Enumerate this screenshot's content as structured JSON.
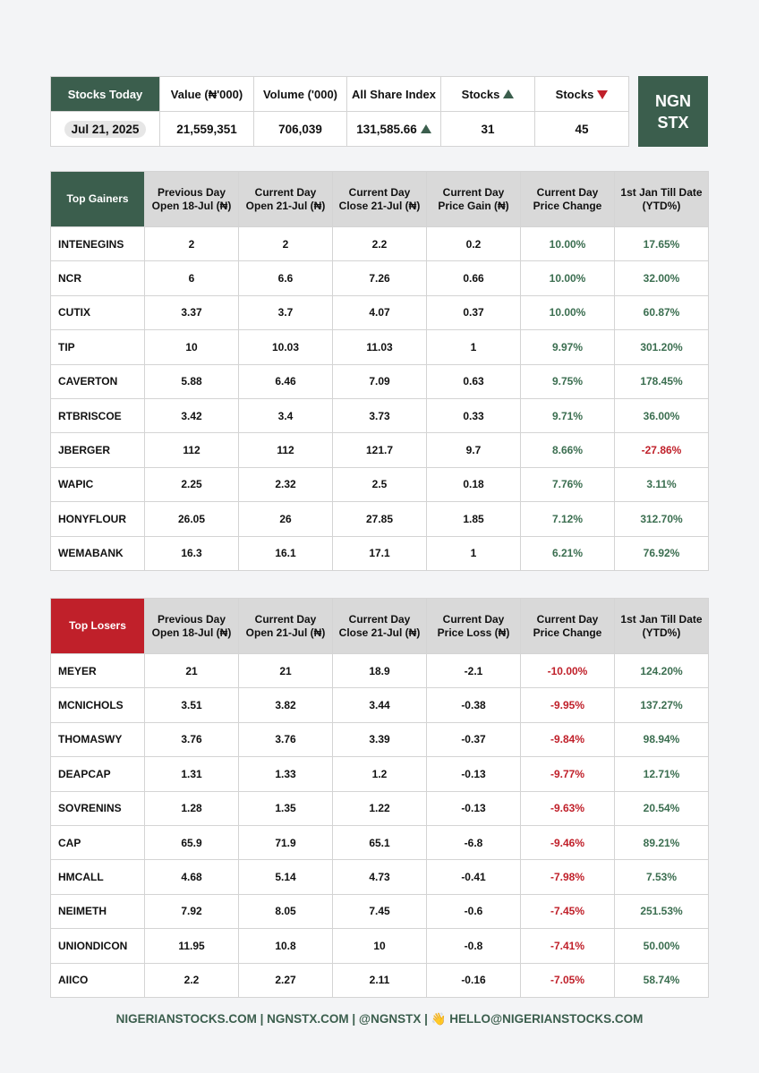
{
  "summary": {
    "headers": [
      "Stocks Today",
      "Value (₦'000)",
      "Volume ('000)",
      "All Share Index",
      "Stocks",
      "Stocks"
    ],
    "values": [
      "Jul 21, 2025",
      "21,559,351",
      "706,039",
      "131,585.66",
      "31",
      "45"
    ]
  },
  "logo": [
    "NGN",
    "STX"
  ],
  "gainers": {
    "headers": [
      "Top Gainers",
      "Previous Day Open 18-Jul (₦)",
      "Current Day Open 21-Jul (₦)",
      "Current Day Close 21-Jul (₦)",
      "Current Day Price Gain (₦)",
      "Current Day Price Change",
      "1st Jan Till Date (YTD%)"
    ],
    "rows": [
      [
        "INTENEGINS",
        "2",
        "2",
        "2.2",
        "0.2",
        "10.00%",
        "17.65%"
      ],
      [
        "NCR",
        "6",
        "6.6",
        "7.26",
        "0.66",
        "10.00%",
        "32.00%"
      ],
      [
        "CUTIX",
        "3.37",
        "3.7",
        "4.07",
        "0.37",
        "10.00%",
        "60.87%"
      ],
      [
        "TIP",
        "10",
        "10.03",
        "11.03",
        "1",
        "9.97%",
        "301.20%"
      ],
      [
        "CAVERTON",
        "5.88",
        "6.46",
        "7.09",
        "0.63",
        "9.75%",
        "178.45%"
      ],
      [
        "RTBRISCOE",
        "3.42",
        "3.4",
        "3.73",
        "0.33",
        "9.71%",
        "36.00%"
      ],
      [
        "JBERGER",
        "112",
        "112",
        "121.7",
        "9.7",
        "8.66%",
        "-27.86%"
      ],
      [
        "WAPIC",
        "2.25",
        "2.32",
        "2.5",
        "0.18",
        "7.76%",
        "3.11%"
      ],
      [
        "HONYFLOUR",
        "26.05",
        "26",
        "27.85",
        "1.85",
        "7.12%",
        "312.70%"
      ],
      [
        "WEMABANK",
        "16.3",
        "16.1",
        "17.1",
        "1",
        "6.21%",
        "76.92%"
      ]
    ]
  },
  "losers": {
    "headers": [
      "Top Losers",
      "Previous Day Open 18-Jul (₦)",
      "Current Day Open 21-Jul (₦)",
      "Current Day Close 21-Jul (₦)",
      "Current Day Price Loss (₦)",
      "Current Day Price Change",
      "1st Jan Till Date (YTD%)"
    ],
    "rows": [
      [
        "MEYER",
        "21",
        "21",
        "18.9",
        "-2.1",
        "-10.00%",
        "124.20%"
      ],
      [
        "MCNICHOLS",
        "3.51",
        "3.82",
        "3.44",
        "-0.38",
        "-9.95%",
        "137.27%"
      ],
      [
        "THOMASWY",
        "3.76",
        "3.76",
        "3.39",
        "-0.37",
        "-9.84%",
        "98.94%"
      ],
      [
        "DEAPCAP",
        "1.31",
        "1.33",
        "1.2",
        "-0.13",
        "-9.77%",
        "12.71%"
      ],
      [
        "SOVRENINS",
        "1.28",
        "1.35",
        "1.22",
        "-0.13",
        "-9.63%",
        "20.54%"
      ],
      [
        "CAP",
        "65.9",
        "71.9",
        "65.1",
        "-6.8",
        "-9.46%",
        "89.21%"
      ],
      [
        "HMCALL",
        "4.68",
        "5.14",
        "4.73",
        "-0.41",
        "-7.98%",
        "7.53%"
      ],
      [
        "NEIMETH",
        "7.92",
        "8.05",
        "7.45",
        "-0.6",
        "-7.45%",
        "251.53%"
      ],
      [
        "UNIONDICON",
        "11.95",
        "10.8",
        "10",
        "-0.8",
        "-7.41%",
        "50.00%"
      ],
      [
        "AIICO",
        "2.2",
        "2.27",
        "2.11",
        "-0.16",
        "-7.05%",
        "58.74%"
      ]
    ]
  },
  "footer": [
    "NIGERIANSTOCKS.COM | NGNSTX.COM | @NGNSTX |",
    "HELLO@NIGERIANSTOCKS.COM"
  ]
}
